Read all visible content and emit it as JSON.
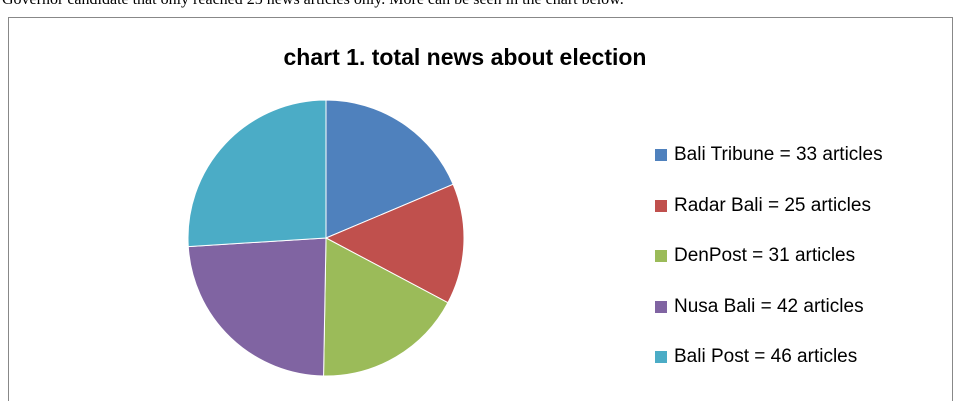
{
  "page": {
    "top_text": "Governor candidate that only reached 25 news articles only. More can be seen in the chart below."
  },
  "chart_data": {
    "type": "pie",
    "title": "chart 1.  total news about election",
    "categories": [
      "Bali Tribune",
      "Radar Bali",
      "DenPost",
      "Nusa Bali",
      "Bali Post"
    ],
    "values": [
      33,
      25,
      31,
      42,
      46
    ],
    "unit": "articles",
    "legend_labels": [
      "Bali Tribune = 33 articles",
      "Radar Bali = 25 articles",
      "DenPost = 31 articles",
      "Nusa Bali = 42 articles",
      "Bali Post = 46 articles"
    ],
    "colors": [
      "#4f81bd",
      "#c0504d",
      "#9bbb59",
      "#8064a2",
      "#4bacc6"
    ],
    "legend_position": "right",
    "start": "12 o'clock",
    "direction": "clockwise"
  }
}
